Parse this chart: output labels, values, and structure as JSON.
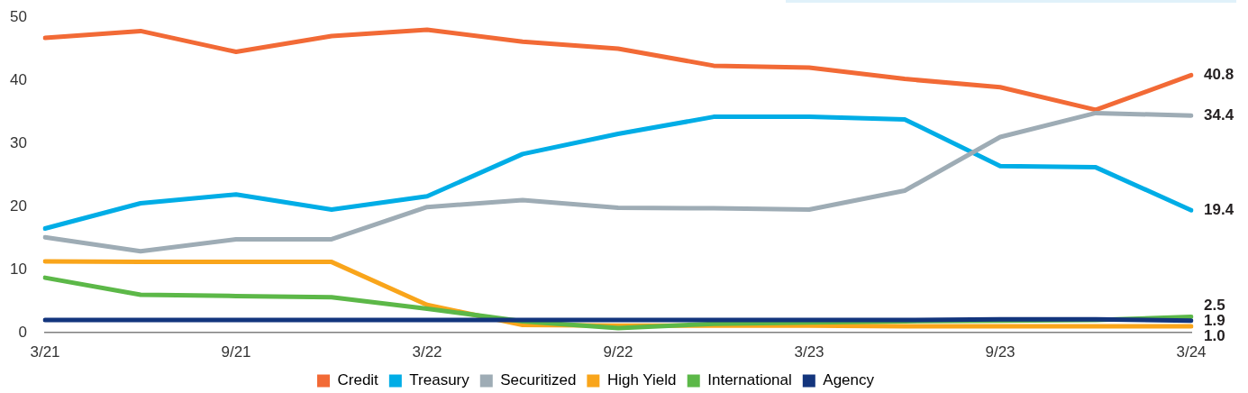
{
  "chart_data": {
    "type": "line",
    "categories": [
      "3/21",
      null,
      "9/21",
      null,
      "3/22",
      null,
      "9/22",
      null,
      "3/23",
      null,
      "9/23",
      null,
      "3/24"
    ],
    "series": [
      {
        "name": "Credit",
        "color": "#f26a36",
        "values": [
          46.7,
          47.8,
          44.5,
          47.0,
          48.0,
          46.1,
          45.0,
          42.3,
          42.0,
          40.2,
          38.9,
          35.3,
          40.8
        ],
        "value_labels": [
          null,
          null,
          null,
          null,
          null,
          null,
          null,
          null,
          null,
          null,
          null,
          null,
          "40.8"
        ]
      },
      {
        "name": "Treasury",
        "color": "#00ade6",
        "values": [
          16.5,
          20.5,
          21.9,
          19.5,
          21.6,
          28.3,
          31.5,
          34.2,
          34.2,
          33.8,
          26.4,
          26.2,
          19.4
        ],
        "value_labels": [
          null,
          null,
          null,
          null,
          null,
          null,
          null,
          null,
          null,
          null,
          null,
          null,
          "19.4"
        ]
      },
      {
        "name": "Securitized",
        "color": "#9eacb5",
        "values": [
          15.1,
          12.9,
          14.8,
          14.8,
          19.9,
          21.0,
          19.8,
          19.7,
          19.5,
          22.5,
          31.0,
          34.8,
          34.4
        ],
        "value_labels": [
          null,
          null,
          null,
          null,
          null,
          null,
          null,
          null,
          null,
          null,
          null,
          null,
          "34.4"
        ]
      },
      {
        "name": "High Yield",
        "color": "#f9a51b",
        "values": [
          11.3,
          11.2,
          11.2,
          11.2,
          4.4,
          1.2,
          1.1,
          1.1,
          1.1,
          1.0,
          1.0,
          1.0,
          1.0
        ],
        "value_labels": [
          null,
          null,
          null,
          null,
          null,
          null,
          null,
          null,
          null,
          null,
          null,
          null,
          "1.0"
        ]
      },
      {
        "name": "International",
        "color": "#5cb848",
        "values": [
          8.7,
          6.0,
          5.8,
          5.6,
          3.8,
          1.8,
          0.7,
          1.4,
          1.6,
          1.8,
          1.9,
          2.0,
          2.5
        ],
        "value_labels": [
          null,
          null,
          null,
          null,
          null,
          null,
          null,
          null,
          null,
          null,
          null,
          null,
          "2.5"
        ]
      },
      {
        "name": "Agency",
        "color": "#13357d",
        "values": [
          2.0,
          2.0,
          2.0,
          2.0,
          2.0,
          2.0,
          2.0,
          2.0,
          2.0,
          2.0,
          2.1,
          2.1,
          1.9
        ],
        "value_labels": [
          null,
          null,
          null,
          null,
          null,
          null,
          null,
          null,
          null,
          null,
          null,
          null,
          "1.9"
        ]
      }
    ],
    "ylim": [
      0,
      50
    ],
    "yticks": [
      0,
      10,
      20,
      30,
      40,
      50
    ],
    "legend": "bottom",
    "marker": "none",
    "line_style": "solid"
  }
}
